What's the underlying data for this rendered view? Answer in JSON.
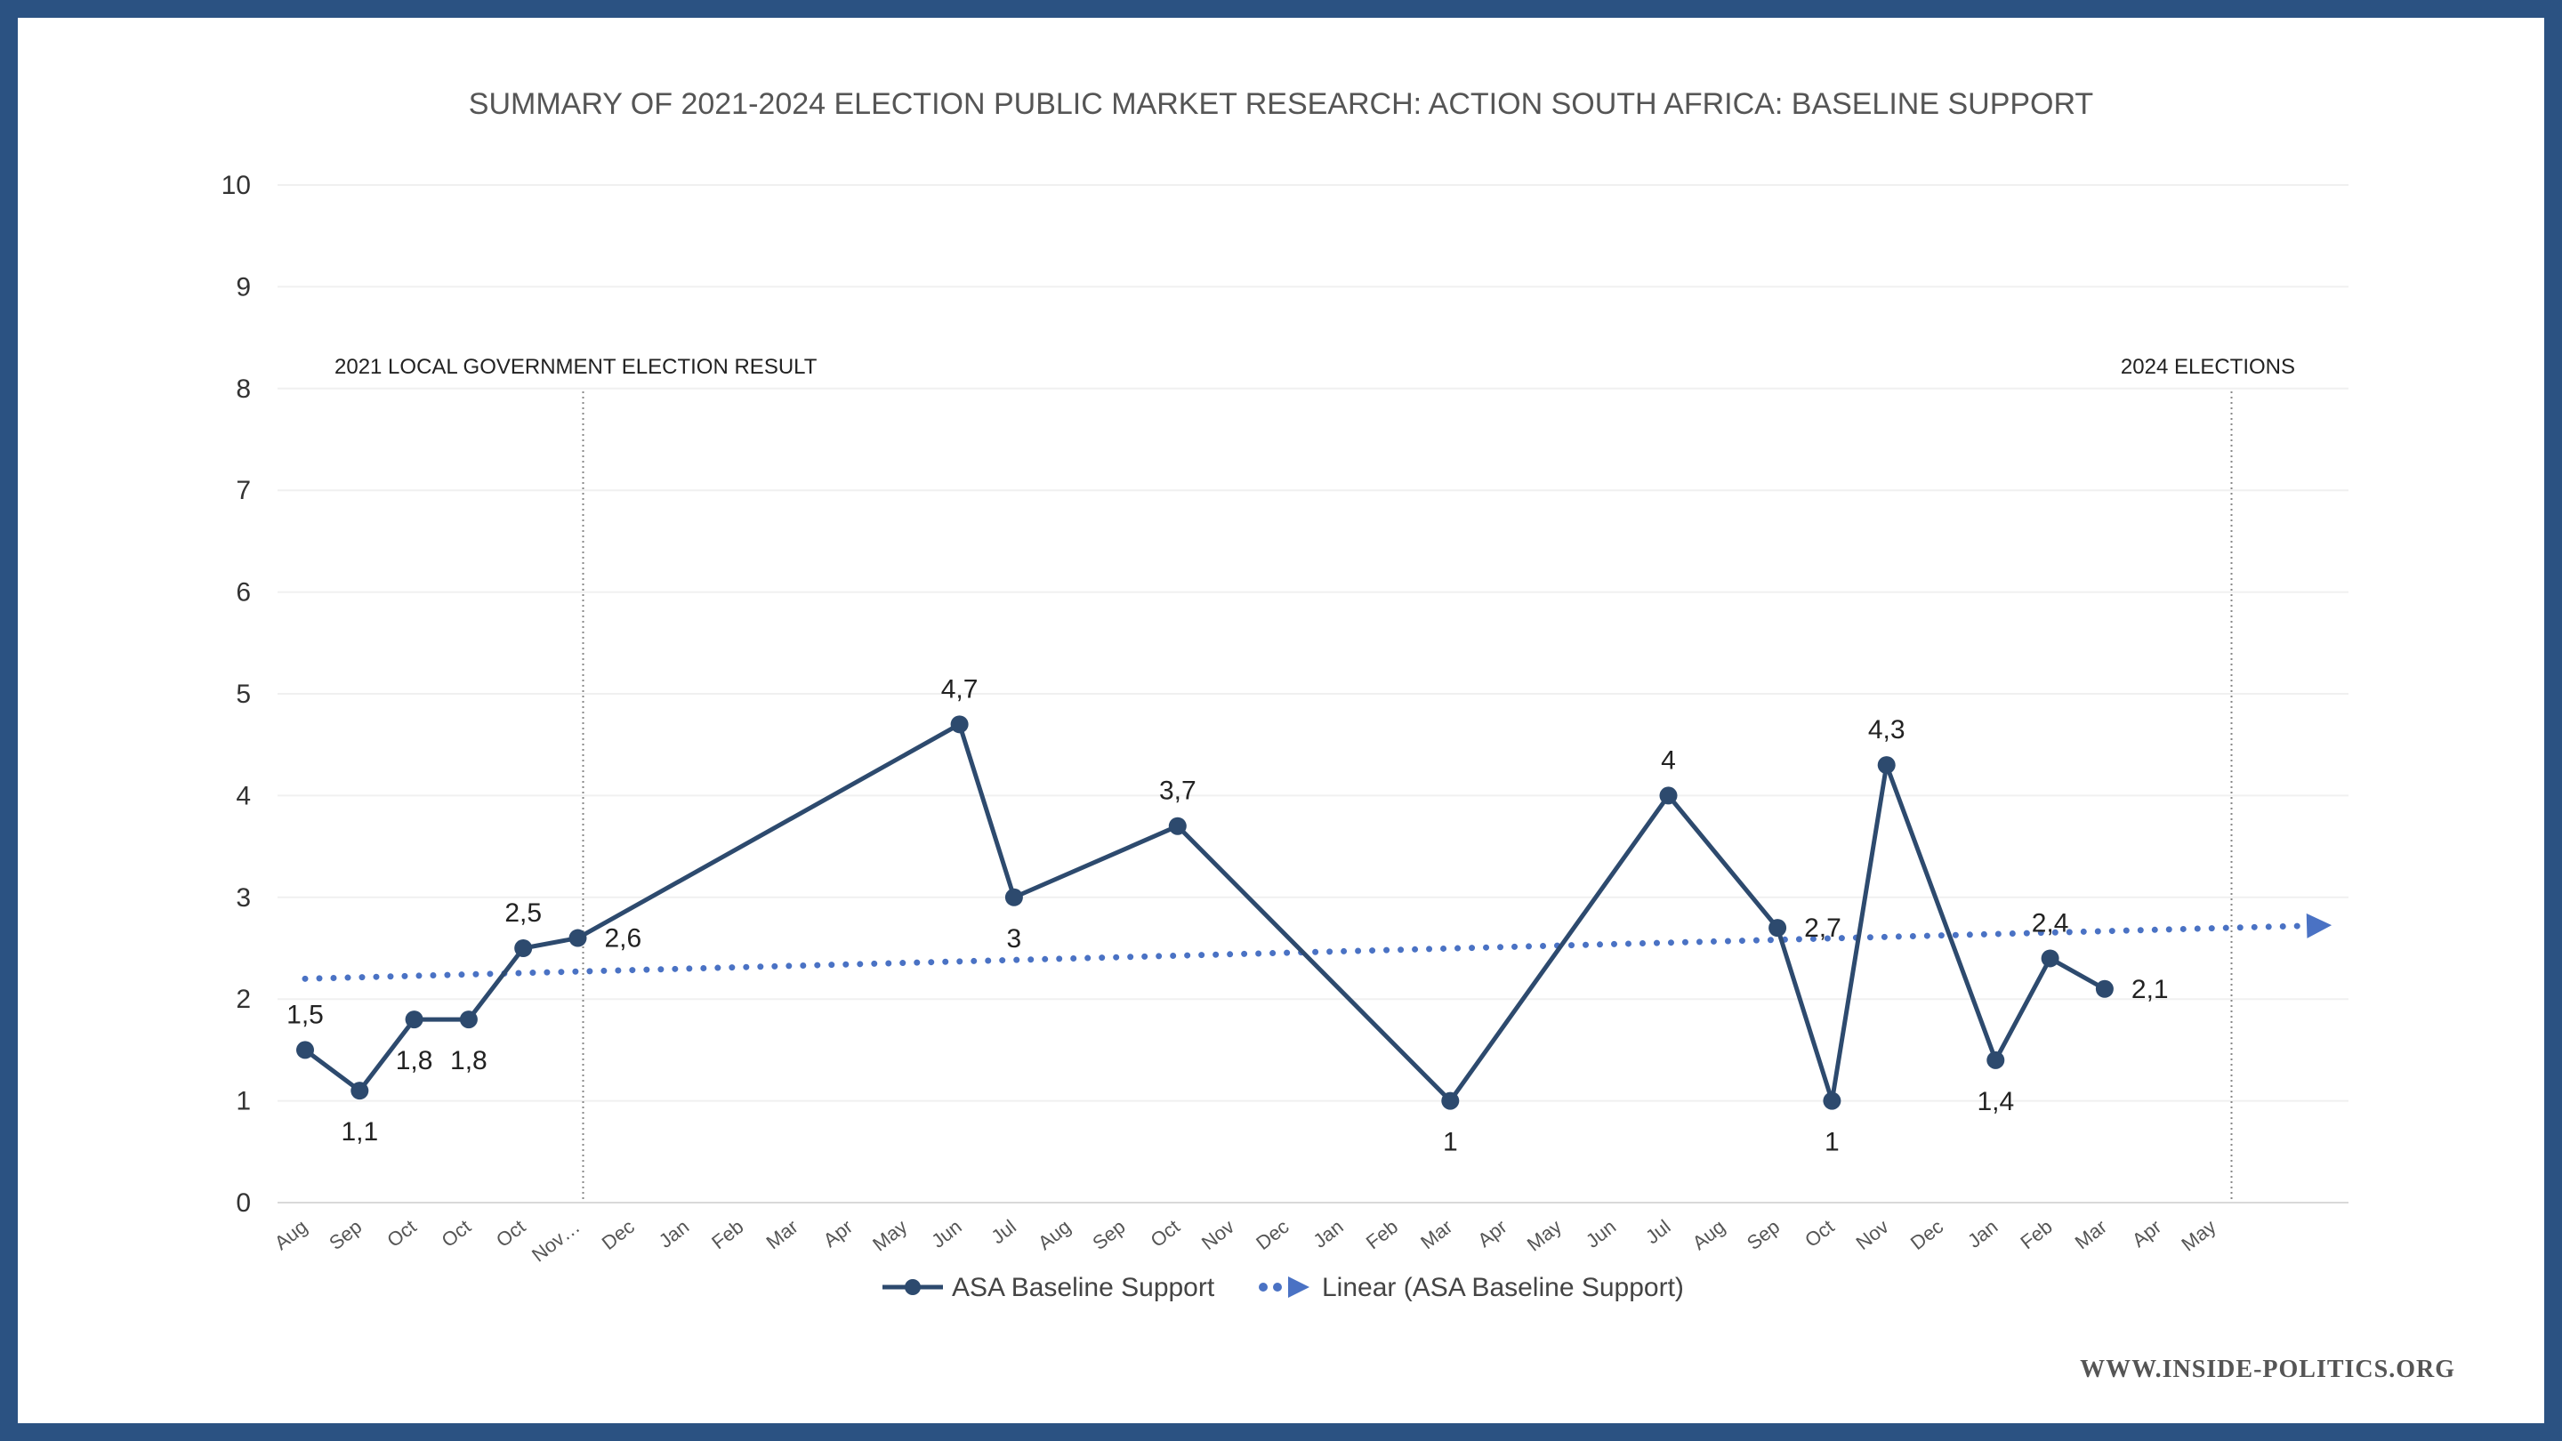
{
  "chart_data": {
    "type": "line",
    "title": "SUMMARY OF 2021-2024 ELECTION PUBLIC MARKET RESEARCH: ACTION SOUTH AFRICA: BASELINE SUPPORT",
    "xlabel": "",
    "ylabel": "",
    "ylim": [
      0,
      10
    ],
    "yticks": [
      "0",
      "1",
      "2",
      "3",
      "4",
      "5",
      "6",
      "7",
      "8",
      "9",
      "10"
    ],
    "categories": [
      "Aug",
      "Sep",
      "Oct",
      "Oct",
      "Oct",
      "Nov…",
      "Dec",
      "Jan",
      "Feb",
      "Mar",
      "Apr",
      "May",
      "Jun",
      "Jul",
      "Aug",
      "Sep",
      "Oct",
      "Nov",
      "Dec",
      "Jan",
      "Feb",
      "Mar",
      "Apr",
      "May",
      "Jun",
      "Jul",
      "Aug",
      "Sep",
      "Oct",
      "Nov",
      "Dec",
      "Jan",
      "Feb",
      "Mar",
      "Apr",
      "May"
    ],
    "grid": true,
    "legend_position": "bottom",
    "series": [
      {
        "name": "ASA Baseline Support",
        "color": "#2d4a6e",
        "points": [
          {
            "index": 0,
            "value": 1.5,
            "label": "1,5",
            "label_pos": "above"
          },
          {
            "index": 1,
            "value": 1.1,
            "label": "1,1",
            "label_pos": "below"
          },
          {
            "index": 2,
            "value": 1.8,
            "label": "1,8",
            "label_pos": "below"
          },
          {
            "index": 3,
            "value": 1.8,
            "label": "1,8",
            "label_pos": "below"
          },
          {
            "index": 4,
            "value": 2.5,
            "label": "2,5",
            "label_pos": "above"
          },
          {
            "index": 5,
            "value": 2.6,
            "label": "2,6",
            "label_pos": "right"
          },
          {
            "index": 12,
            "value": 4.7,
            "label": "4,7",
            "label_pos": "above"
          },
          {
            "index": 13,
            "value": 3,
            "label": "3",
            "label_pos": "below"
          },
          {
            "index": 16,
            "value": 3.7,
            "label": "3,7",
            "label_pos": "above"
          },
          {
            "index": 21,
            "value": 1,
            "label": "1",
            "label_pos": "below"
          },
          {
            "index": 25,
            "value": 4,
            "label": "4",
            "label_pos": "above"
          },
          {
            "index": 27,
            "value": 2.7,
            "label": "2,7",
            "label_pos": "right"
          },
          {
            "index": 28,
            "value": 1,
            "label": "1",
            "label_pos": "below"
          },
          {
            "index": 29,
            "value": 4.3,
            "label": "4,3",
            "label_pos": "above"
          },
          {
            "index": 31,
            "value": 1.4,
            "label": "1,4",
            "label_pos": "below"
          },
          {
            "index": 32,
            "value": 2.4,
            "label": "2,4",
            "label_pos": "above"
          },
          {
            "index": 33,
            "value": 2.1,
            "label": "2,1",
            "label_pos": "right"
          }
        ]
      },
      {
        "name": "Linear (ASA Baseline Support)",
        "color": "#4a72c4",
        "style": "dotted",
        "trend_start": {
          "index": 0,
          "value": 2.2
        },
        "trend_end": {
          "index": 37,
          "value": 2.72
        }
      }
    ],
    "annotations": [
      {
        "text": "2021 LOCAL GOVERNMENT ELECTION RESULT",
        "at_index": 5
      },
      {
        "text": "2024 ELECTIONS",
        "at_index": 35
      }
    ]
  },
  "footer": {
    "watermark": "WWW.INSIDE-POLITICS.ORG"
  }
}
